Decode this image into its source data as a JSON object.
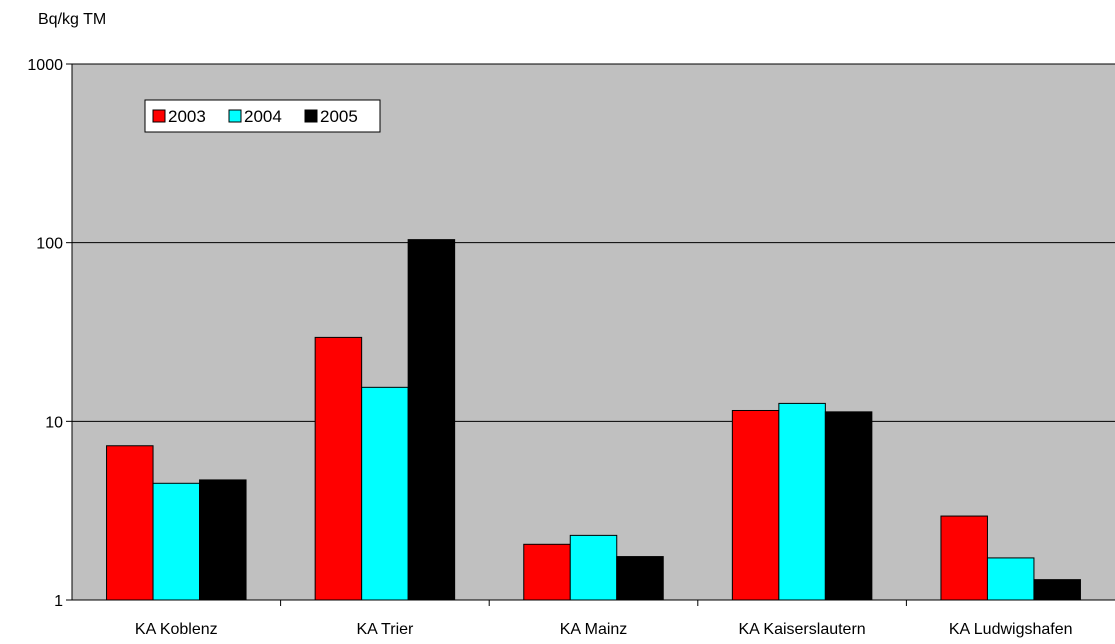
{
  "chart_data": {
    "type": "bar",
    "ylabel": "Bq/kg TM",
    "y_scale": "log",
    "ylim": [
      1,
      1000
    ],
    "y_ticks": [
      "1",
      "10",
      "100",
      "1000"
    ],
    "grid": true,
    "plot_background": "#c0c0c0",
    "legend_position": "top-left",
    "categories": [
      "KA Koblenz",
      "KA Trier",
      "KA Mainz",
      "KA Kaiserslautern",
      "KA Ludwigshafen"
    ],
    "series": [
      {
        "name": "2003",
        "color": "#ff0000",
        "values": [
          7.3,
          29.5,
          2.05,
          11.5,
          2.95
        ]
      },
      {
        "name": "2004",
        "color": "#00ffff",
        "values": [
          4.5,
          15.5,
          2.3,
          12.6,
          1.72
        ]
      },
      {
        "name": "2005",
        "color": "#000000",
        "values": [
          4.7,
          104,
          1.75,
          11.3,
          1.3
        ]
      }
    ]
  }
}
